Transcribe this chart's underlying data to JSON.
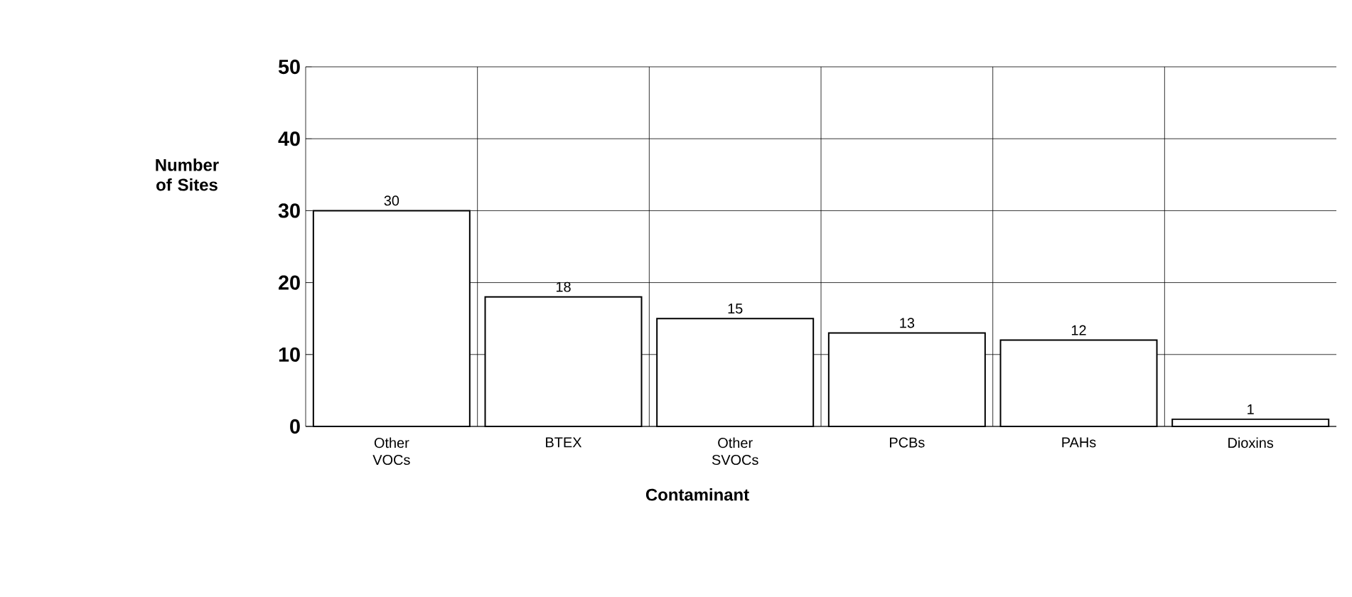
{
  "chart_data": {
    "type": "bar",
    "xlabel": "Contaminant",
    "ylabel": "Number of Sites",
    "categories": [
      "Other VOCs",
      "BTEX",
      "Other SVOCs",
      "PCBs",
      "PAHs",
      "Dioxins"
    ],
    "values": [
      30,
      18,
      15,
      13,
      12,
      1
    ],
    "color": "#ffffff",
    "ylim": [
      0,
      50
    ],
    "yticks": [
      0,
      10,
      20,
      30,
      40,
      50
    ],
    "grid": true,
    "data_labels": true
  }
}
